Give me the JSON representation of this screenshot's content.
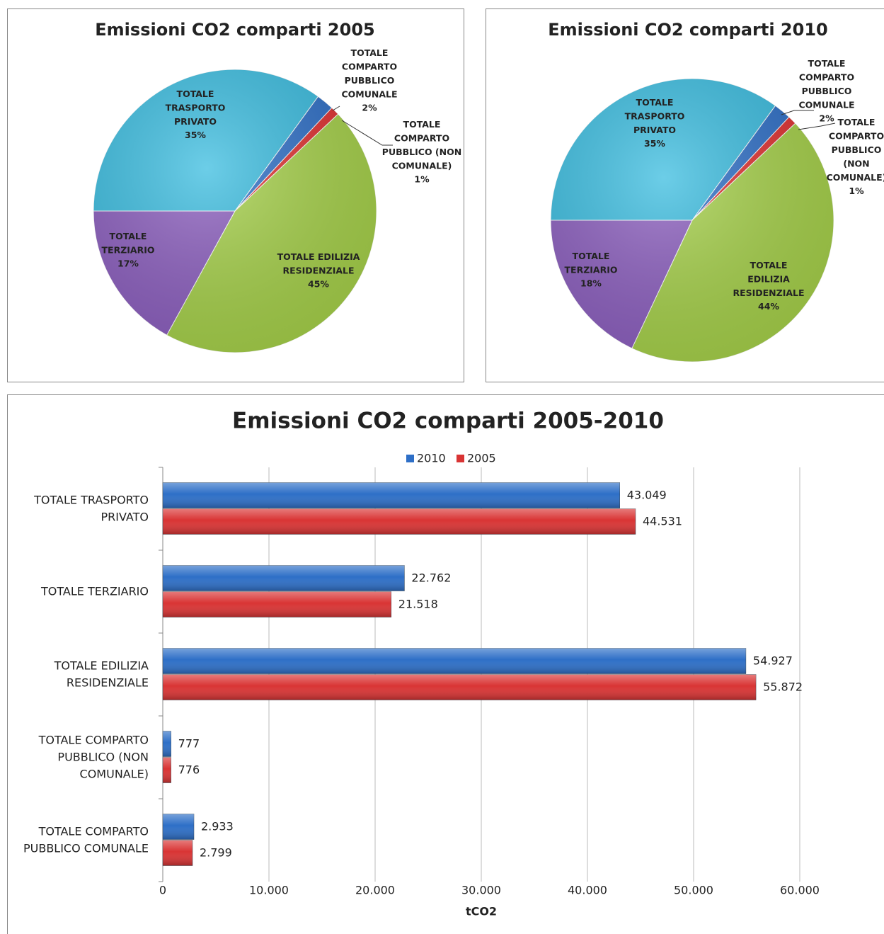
{
  "chart_data": [
    {
      "type": "pie",
      "title": "Emissioni CO2 comparti 2005",
      "categories": [
        "TOTALE TRASPORTO PRIVATO",
        "TOTALE COMPARTO PUBBLICO COMUNALE",
        "TOTALE COMPARTO PUBBLICO (NON COMUNALE)",
        "TOTALE EDILIZIA RESIDENZIALE",
        "TOTALE TERZIARIO"
      ],
      "values": [
        35,
        2,
        1,
        45,
        17
      ],
      "value_labels": [
        "35%",
        "2%",
        "1%",
        "45%",
        "17%"
      ],
      "colors": [
        "#3bbde0",
        "#2e6fc7",
        "#e03030",
        "#a6d14a",
        "#8c5fbf"
      ]
    },
    {
      "type": "pie",
      "title": "Emissioni CO2 comparti 2010",
      "categories": [
        "TOTALE TRASPORTO PRIVATO",
        "TOTALE COMPARTO PUBBLICO COMUNALE",
        "TOTALE COMPARTO PUBBLICO (NON COMUNALE)",
        "TOTALE EDILIZIA RESIDENZIALE",
        "TOTALE TERZIARIO"
      ],
      "values": [
        35,
        2,
        1,
        44,
        18
      ],
      "value_labels": [
        "35%",
        "2%",
        "1%",
        "44%",
        "18%"
      ],
      "colors": [
        "#3bbde0",
        "#2e6fc7",
        "#e03030",
        "#a6d14a",
        "#8c5fbf"
      ]
    },
    {
      "type": "hbar",
      "title": "Emissioni CO2 comparti 2005-2010",
      "xlabel": "tCO2",
      "categories": [
        "TOTALE TRASPORTO PRIVATO",
        "TOTALE TERZIARIO",
        "TOTALE EDILIZIA RESIDENZIALE",
        "TOTALE COMPARTO PUBBLICO (NON COMUNALE)",
        "TOTALE COMPARTO PUBBLICO COMUNALE"
      ],
      "series": [
        {
          "name": "2010",
          "color": "#2e6fc7",
          "values": [
            43049,
            22762,
            54927,
            777,
            2933
          ],
          "value_labels": [
            "43.049",
            "22.762",
            "54.927",
            "777",
            "2.933"
          ]
        },
        {
          "name": "2005",
          "color": "#d93434",
          "values": [
            44531,
            21518,
            55872,
            776,
            2799
          ],
          "value_labels": [
            "44.531",
            "21.518",
            "55.872",
            "776",
            "2.799"
          ]
        }
      ],
      "xlim": [
        0,
        60000
      ],
      "xticks": [
        0,
        {
          "value": 10000,
          "label": "10.000"
        },
        {
          "value": 20000,
          "label": "20.000"
        },
        {
          "value": 30000,
          "label": "30.000"
        },
        {
          "value": 40000,
          "label": "40.000"
        },
        {
          "value": 50000,
          "label": "50.000"
        },
        {
          "value": 60000,
          "label": "60.000"
        }
      ],
      "grid": true,
      "legend": "top"
    }
  ]
}
